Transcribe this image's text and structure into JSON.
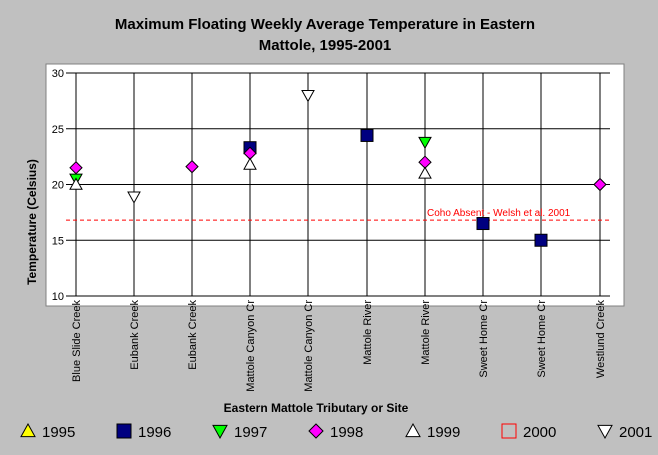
{
  "chart_data": {
    "type": "scatter",
    "title_line1": "Maximum Floating Weekly Average Temperature in Eastern",
    "title_line2": "Mattole, 1995-2001",
    "xlabel": "Eastern Mattole Tributary or Site",
    "ylabel": "Temperature (Celsius)",
    "ylim": [
      10,
      30
    ],
    "yticks": [
      "10",
      "15",
      "20",
      "25",
      "30"
    ],
    "categories": [
      "Blue Slide Creek",
      "Eubank Creek",
      "Eubank Creek",
      "Mattole Canyon Cr",
      "Mattole Canyon Cr",
      "Mattole River",
      "Mattole River",
      "Sweet Home Cr",
      "Sweet Home Cr",
      "Westlund Creek"
    ],
    "grid": true,
    "legend_position": "bottom",
    "reference_line": {
      "value": 16.8,
      "label": "Coho Absent - Welsh et al. 2001",
      "color": "#ff0000"
    },
    "series": [
      {
        "name": "1995",
        "marker": "triangle-up",
        "color": "#ffff00",
        "points": []
      },
      {
        "name": "1996",
        "marker": "square",
        "color": "#000080",
        "points": [
          [
            3,
            23.3
          ],
          [
            5,
            24.4
          ],
          [
            7,
            16.5
          ],
          [
            8,
            15.0
          ]
        ]
      },
      {
        "name": "1997",
        "marker": "triangle-down",
        "color": "#00ff00",
        "points": [
          [
            0,
            20.5
          ],
          [
            6,
            23.8
          ]
        ]
      },
      {
        "name": "1998",
        "marker": "diamond",
        "color": "#ff00ff",
        "points": [
          [
            0,
            21.5
          ],
          [
            2,
            21.6
          ],
          [
            3,
            22.8
          ],
          [
            6,
            22.0
          ],
          [
            9,
            20.0
          ]
        ]
      },
      {
        "name": "1999",
        "marker": "triangle-up-open",
        "color": "#ffffff",
        "points": [
          [
            0,
            20.0
          ],
          [
            3,
            21.8
          ],
          [
            6,
            21.0
          ]
        ]
      },
      {
        "name": "2000",
        "marker": "square-open",
        "color": "#ff0000",
        "points": []
      },
      {
        "name": "2001",
        "marker": "triangle-down-open",
        "color": "#ffffff",
        "points": [
          [
            1,
            18.9
          ],
          [
            4,
            28.0
          ]
        ]
      }
    ]
  }
}
